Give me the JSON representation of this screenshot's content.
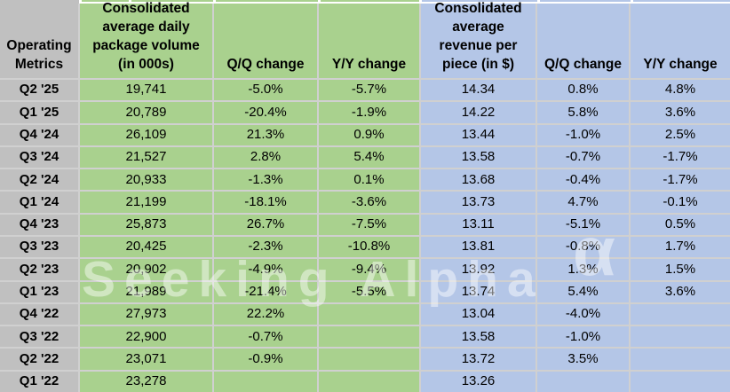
{
  "header": {
    "corner_lines": [
      "Operating",
      "Metrics"
    ],
    "volume_lines": [
      "Consolidated",
      "average daily",
      "package volume",
      "(in 000s)"
    ],
    "volume_qq": "Q/Q change",
    "volume_yy": "Y/Y change",
    "revenue_lines": [
      "Consolidated",
      "average",
      "revenue per",
      "piece (in $)"
    ],
    "revenue_qq": "Q/Q change",
    "revenue_yy": "Y/Y change"
  },
  "chart_data": {
    "type": "table",
    "columns": [
      "Operating Metrics",
      "Consolidated average daily package volume (in 000s)",
      "Q/Q change",
      "Y/Y change",
      "Consolidated average revenue per piece (in $)",
      "Q/Q change",
      "Y/Y change"
    ],
    "rows": [
      [
        "Q2 '25",
        "19,741",
        "-5.0%",
        "-5.7%",
        "14.34",
        "0.8%",
        "4.8%"
      ],
      [
        "Q1 '25",
        "20,789",
        "-20.4%",
        "-1.9%",
        "14.22",
        "5.8%",
        "3.6%"
      ],
      [
        "Q4 '24",
        "26,109",
        "21.3%",
        "0.9%",
        "13.44",
        "-1.0%",
        "2.5%"
      ],
      [
        "Q3 '24",
        "21,527",
        "2.8%",
        "5.4%",
        "13.58",
        "-0.7%",
        "-1.7%"
      ],
      [
        "Q2 '24",
        "20,933",
        "-1.3%",
        "0.1%",
        "13.68",
        "-0.4%",
        "-1.7%"
      ],
      [
        "Q1 '24",
        "21,199",
        "-18.1%",
        "-3.6%",
        "13.73",
        "4.7%",
        "-0.1%"
      ],
      [
        "Q4 '23",
        "25,873",
        "26.7%",
        "-7.5%",
        "13.11",
        "-5.1%",
        "0.5%"
      ],
      [
        "Q3 '23",
        "20,425",
        "-2.3%",
        "-10.8%",
        "13.81",
        "-0.8%",
        "1.7%"
      ],
      [
        "Q2 '23",
        "20,902",
        "-4.9%",
        "-9.4%",
        "13.92",
        "1.3%",
        "1.5%"
      ],
      [
        "Q1 '23",
        "21,989",
        "-21.4%",
        "-5.5%",
        "13.74",
        "5.4%",
        "3.6%"
      ],
      [
        "Q4 '22",
        "27,973",
        "22.2%",
        "",
        "13.04",
        "-4.0%",
        ""
      ],
      [
        "Q3 '22",
        "22,900",
        "-0.7%",
        "",
        "13.58",
        "-1.0%",
        ""
      ],
      [
        "Q2 '22",
        "23,071",
        "-0.9%",
        "",
        "13.72",
        "3.5%",
        ""
      ],
      [
        "Q1 '22",
        "23,278",
        "",
        "",
        "13.26",
        "",
        ""
      ]
    ]
  },
  "watermark": {
    "text": "Seeking Alpha",
    "alpha_symbol": "α"
  },
  "colors": {
    "green": "#a9d18e",
    "blue": "#b4c6e7",
    "gray": "#c0c0c0",
    "gridline": "#d0d0d0",
    "text": "#000000",
    "watermark": "rgba(255,255,255,0.45)"
  }
}
